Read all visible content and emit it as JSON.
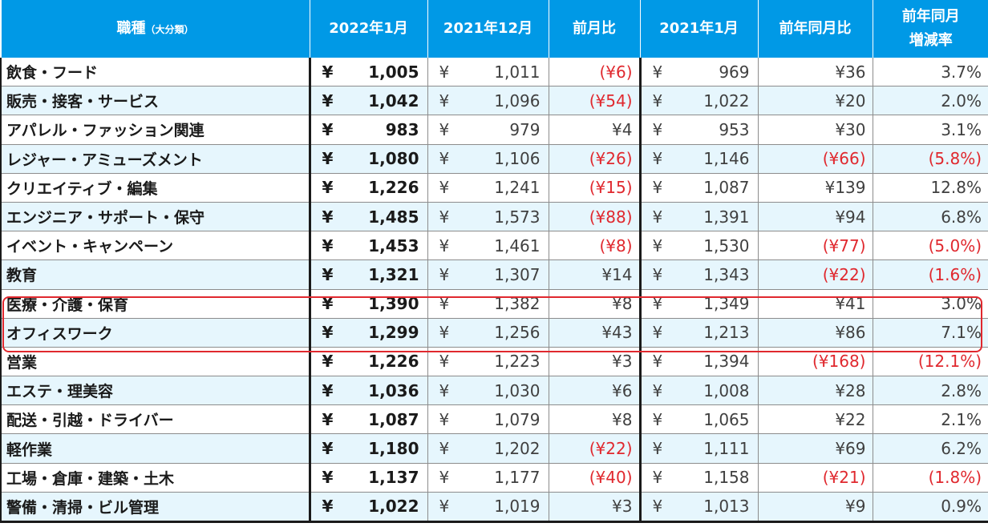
{
  "headers": {
    "category": "職種",
    "category_sub": "（大分類）",
    "col_jan2022": "2022年1月",
    "col_dec2021": "2021年12月",
    "col_mom": "前月比",
    "col_jan2021": "2021年1月",
    "col_yoy": "前年同月比",
    "col_rate_line1": "前年同月",
    "col_rate_line2": "増減率"
  },
  "yen_symbol": "¥",
  "rows": [
    {
      "name": "飲食・フード",
      "jan2022": "1,005",
      "dec2021": "1,011",
      "mom": "(¥6)",
      "jan2021": "969",
      "yoy": "¥36",
      "rate": "3.7%"
    },
    {
      "name": "販売・接客・サービス",
      "jan2022": "1,042",
      "dec2021": "1,096",
      "mom": "(¥54)",
      "jan2021": "1,022",
      "yoy": "¥20",
      "rate": "2.0%"
    },
    {
      "name": "アパレル・ファッション関連",
      "jan2022": "983",
      "dec2021": "979",
      "mom": "¥4",
      "jan2021": "953",
      "yoy": "¥30",
      "rate": "3.1%"
    },
    {
      "name": "レジャー・アミューズメント",
      "jan2022": "1,080",
      "dec2021": "1,106",
      "mom": "(¥26)",
      "jan2021": "1,146",
      "yoy": "(¥66)",
      "rate": "(5.8%)"
    },
    {
      "name": "クリエイティブ・編集",
      "jan2022": "1,226",
      "dec2021": "1,241",
      "mom": "(¥15)",
      "jan2021": "1,087",
      "yoy": "¥139",
      "rate": "12.8%"
    },
    {
      "name": "エンジニア・サポート・保守",
      "jan2022": "1,485",
      "dec2021": "1,573",
      "mom": "(¥88)",
      "jan2021": "1,391",
      "yoy": "¥94",
      "rate": "6.8%"
    },
    {
      "name": "イベント・キャンペーン",
      "jan2022": "1,453",
      "dec2021": "1,461",
      "mom": "(¥8)",
      "jan2021": "1,530",
      "yoy": "(¥77)",
      "rate": "(5.0%)"
    },
    {
      "name": "教育",
      "jan2022": "1,321",
      "dec2021": "1,307",
      "mom": "¥14",
      "jan2021": "1,343",
      "yoy": "(¥22)",
      "rate": "(1.6%)"
    },
    {
      "name": "医療・介護・保育",
      "jan2022": "1,390",
      "dec2021": "1,382",
      "mom": "¥8",
      "jan2021": "1,349",
      "yoy": "¥41",
      "rate": "3.0%"
    },
    {
      "name": "オフィスワーク",
      "jan2022": "1,299",
      "dec2021": "1,256",
      "mom": "¥43",
      "jan2021": "1,213",
      "yoy": "¥86",
      "rate": "7.1%"
    },
    {
      "name": "営業",
      "jan2022": "1,226",
      "dec2021": "1,223",
      "mom": "¥3",
      "jan2021": "1,394",
      "yoy": "(¥168)",
      "rate": "(12.1%)"
    },
    {
      "name": "エステ・理美容",
      "jan2022": "1,036",
      "dec2021": "1,030",
      "mom": "¥6",
      "jan2021": "1,008",
      "yoy": "¥28",
      "rate": "2.8%"
    },
    {
      "name": "配送・引越・ドライバー",
      "jan2022": "1,087",
      "dec2021": "1,079",
      "mom": "¥8",
      "jan2021": "1,065",
      "yoy": "¥22",
      "rate": "2.1%"
    },
    {
      "name": "軽作業",
      "jan2022": "1,180",
      "dec2021": "1,202",
      "mom": "(¥22)",
      "jan2021": "1,111",
      "yoy": "¥69",
      "rate": "6.2%"
    },
    {
      "name": "工場・倉庫・建築・土木",
      "jan2022": "1,137",
      "dec2021": "1,177",
      "mom": "(¥40)",
      "jan2021": "1,158",
      "yoy": "(¥21)",
      "rate": "(1.8%)"
    },
    {
      "name": "警備・清掃・ビル管理",
      "jan2022": "1,022",
      "dec2021": "1,019",
      "mom": "¥3",
      "jan2021": "1,013",
      "yoy": "¥9",
      "rate": "0.9%"
    }
  ],
  "colors": {
    "header_bg": "#0099e6",
    "stripe": "#e6f6fd",
    "negative": "#e0282e",
    "highlight": "#e0282e"
  }
}
